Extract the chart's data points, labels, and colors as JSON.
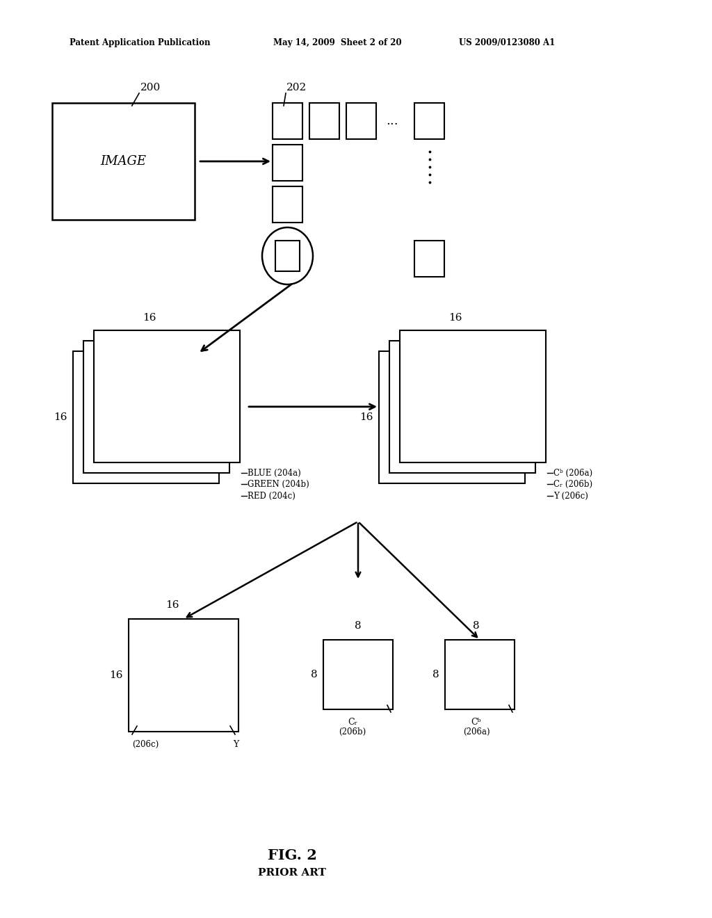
{
  "bg_color": "#ffffff",
  "header_left": "Patent Application Publication",
  "header_mid": "May 14, 2009  Sheet 2 of 20",
  "header_right": "US 2009/0123080 A1",
  "fig_label": "FIG. 2",
  "fig_sublabel": "PRIOR ART",
  "label_200": "200",
  "label_202": "202",
  "label_image": "IMAGE",
  "label_blue": "BLUE (204a)",
  "label_green": "GREEN (204b)",
  "label_red": "RED (204c)",
  "label_cb_a": "Cᵇ (206a)",
  "label_cr_b": "Cᵣ (206b)",
  "label_y_c": "Y (206c)",
  "label_cr_206b_line1": "Cᵣ",
  "label_cr_206b_line2": "(206b)",
  "label_cb_206a_line1": "Cᵇ",
  "label_cb_206a_line2": "(206a)"
}
